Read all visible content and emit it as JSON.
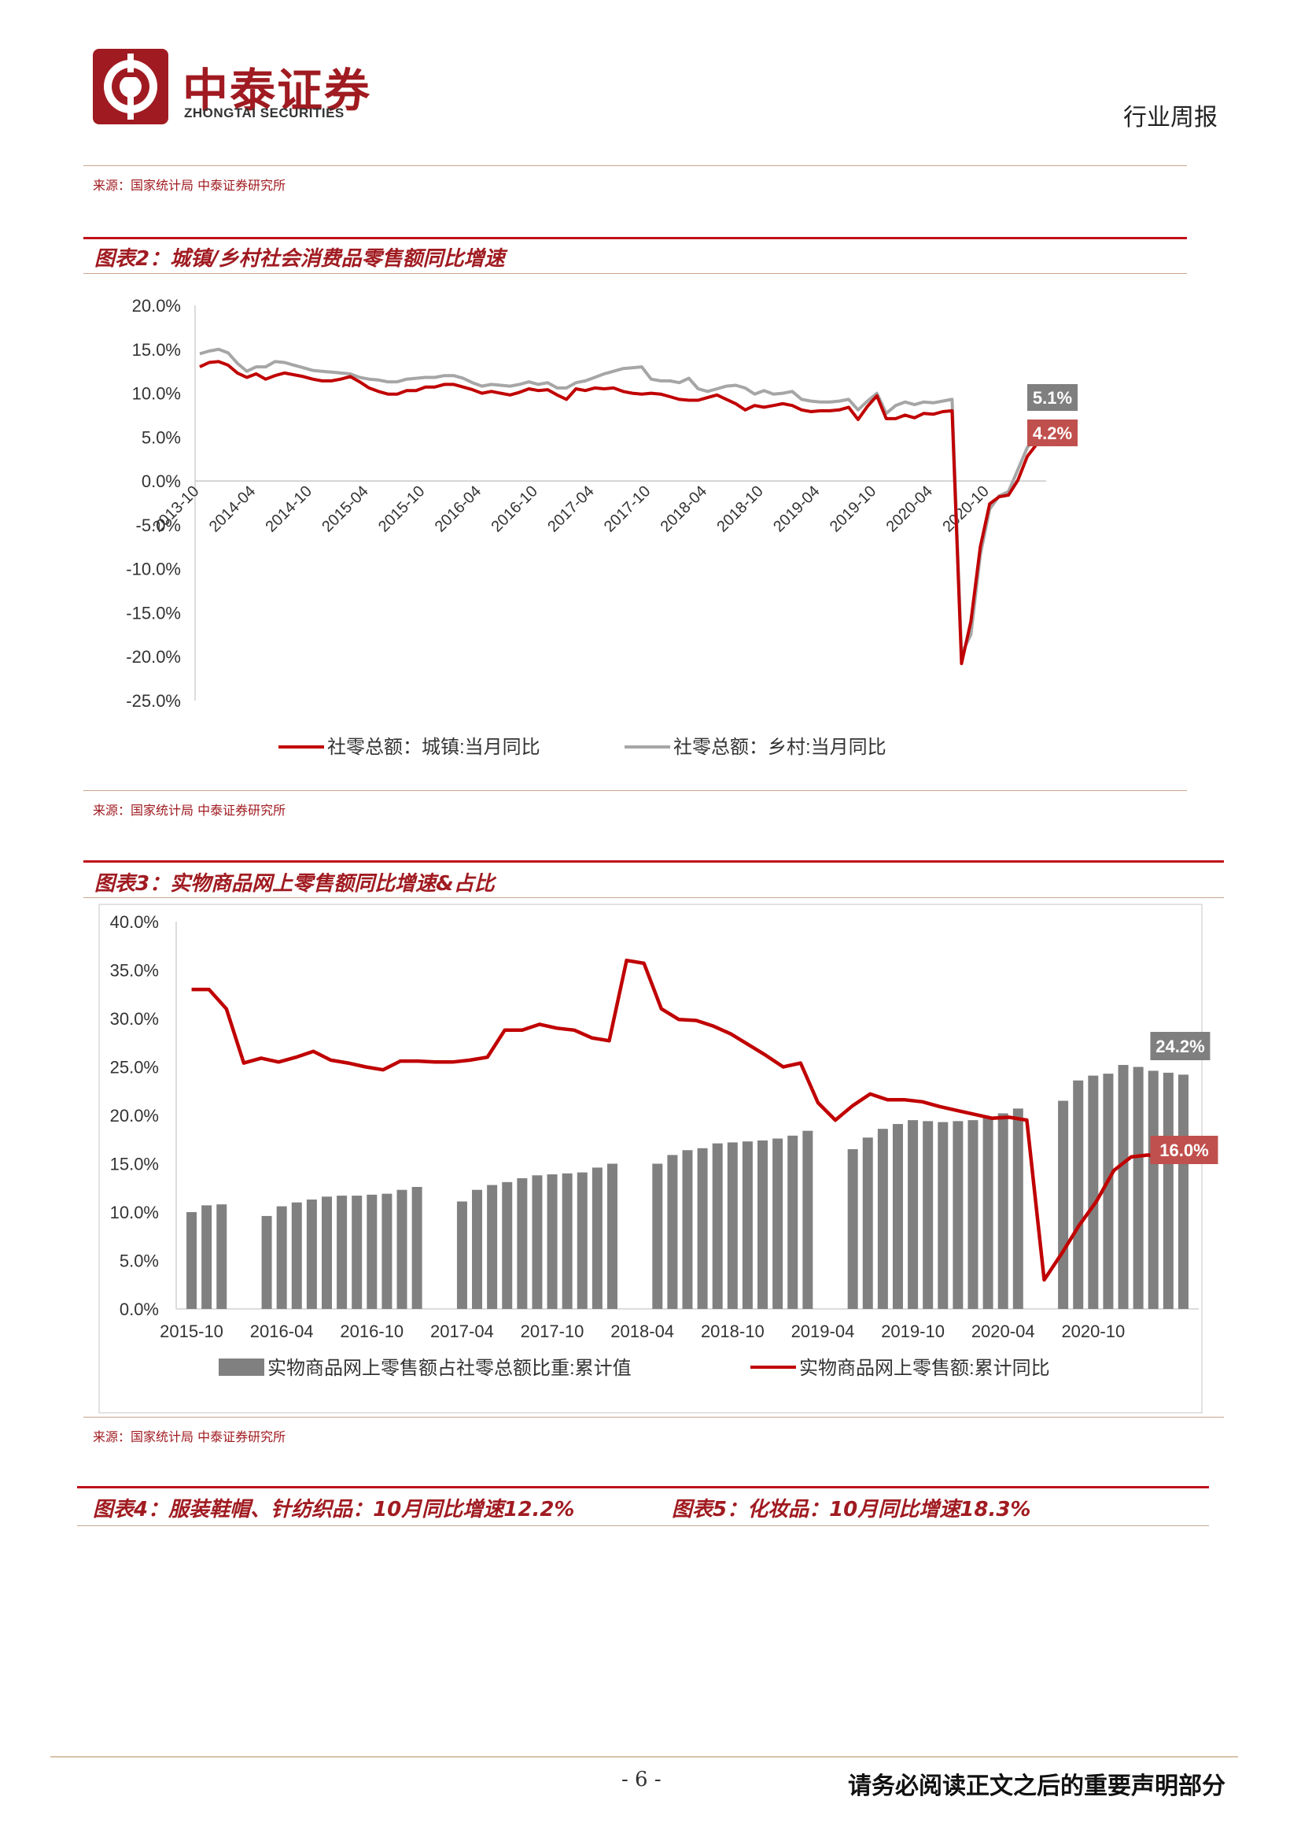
{
  "header": {
    "brand_cn": "中泰证券",
    "brand_en": "ZHONGTAI SECURITIES",
    "report_type": "行业周报"
  },
  "source_text": "来源：国家统计局 中泰证券研究所",
  "figures": {
    "fig2_title": "图表2：城镇/乡村社会消费品零售额同比增速",
    "fig3_title": "图表3：实物商品网上零售额同比增速&占比",
    "fig4_title": "图表4：服装鞋帽、针纺织品：10月同比增速12.2%",
    "fig5_title": "图表5：化妆品：10月同比增速18.3%"
  },
  "footer": {
    "page_no": "- 6 -",
    "disclaimer": "请务必阅读正文之后的重要声明部分"
  },
  "colors": {
    "accent": "#a01b21",
    "line_red": "#c00000",
    "line_gray": "#a6a6a6",
    "bar_gray": "#808080"
  },
  "chart_data": [
    {
      "type": "line",
      "ylim": [
        -25,
        20
      ],
      "yticks": [
        "20.0%",
        "15.0%",
        "10.0%",
        "5.0%",
        "0.0%",
        "-5.0%",
        "-10.0%",
        "-15.0%",
        "-20.0%",
        "-25.0%"
      ],
      "x_tick_labels": [
        "2013-10",
        "2014-04",
        "2014-10",
        "2015-04",
        "2015-10",
        "2016-04",
        "2016-10",
        "2017-04",
        "2017-10",
        "2018-04",
        "2018-10",
        "2019-04",
        "2019-10",
        "2020-04",
        "2020-10"
      ],
      "series": [
        {
          "name": "社零总额：城镇:当月同比",
          "color": "#c00000",
          "end_label": "4.2%",
          "values": [
            13.0,
            13.5,
            13.6,
            13.2,
            12.3,
            11.8,
            12.2,
            11.6,
            12.0,
            12.3,
            12.1,
            11.9,
            11.6,
            11.4,
            11.4,
            11.6,
            11.9,
            11.3,
            10.6,
            10.2,
            9.9,
            9.9,
            10.3,
            10.3,
            10.7,
            10.7,
            11.0,
            11.0,
            10.7,
            10.4,
            10.0,
            10.2,
            10.0,
            9.8,
            10.1,
            10.5,
            10.3,
            10.4,
            9.8,
            9.3,
            10.5,
            10.3,
            10.6,
            10.5,
            10.6,
            10.2,
            10.0,
            9.9,
            10.0,
            9.9,
            9.6,
            9.3,
            9.2,
            9.2,
            9.5,
            9.8,
            9.3,
            8.8,
            8.1,
            8.6,
            8.4,
            8.6,
            8.8,
            8.6,
            8.1,
            7.9,
            8.0,
            8.0,
            8.1,
            8.4,
            7.0,
            8.5,
            9.7,
            7.1,
            7.1,
            7.5,
            7.2,
            7.7,
            7.6,
            7.9,
            8.0,
            -20.8,
            -16.0,
            -7.5,
            -2.6,
            -1.8,
            -1.6,
            0.1,
            2.8,
            4.2
          ]
        },
        {
          "name": "社零总额：乡村:当月同比",
          "color": "#a6a6a6",
          "end_label": "5.1%",
          "values": [
            14.5,
            14.8,
            15.0,
            14.6,
            13.4,
            12.5,
            13.0,
            13.0,
            13.6,
            13.5,
            13.2,
            12.9,
            12.6,
            12.5,
            12.4,
            12.3,
            12.2,
            11.8,
            11.6,
            11.5,
            11.3,
            11.3,
            11.6,
            11.7,
            11.8,
            11.8,
            12.0,
            12.0,
            11.7,
            11.2,
            10.8,
            11.0,
            10.9,
            10.8,
            11.0,
            11.3,
            11.0,
            11.2,
            10.6,
            10.6,
            11.2,
            11.4,
            11.8,
            12.2,
            12.5,
            12.8,
            12.9,
            13.0,
            11.6,
            11.4,
            11.4,
            11.2,
            11.7,
            10.5,
            10.2,
            10.5,
            10.8,
            10.9,
            10.6,
            9.9,
            10.3,
            9.9,
            10.0,
            10.2,
            9.3,
            9.1,
            9.0,
            9.0,
            9.1,
            9.3,
            8.1,
            9.1,
            10.0,
            7.7,
            8.6,
            9.0,
            8.7,
            9.0,
            8.9,
            9.1,
            9.3,
            -19.7,
            -17.5,
            -8.4,
            -3.2,
            -1.7,
            -1.2,
            1.3,
            3.8,
            5.1
          ]
        }
      ]
    },
    {
      "type": "bar",
      "ylim": [
        0,
        40
      ],
      "yticks": [
        "40.0%",
        "35.0%",
        "30.0%",
        "25.0%",
        "20.0%",
        "15.0%",
        "10.0%",
        "5.0%",
        "0.0%"
      ],
      "x_tick_labels": [
        "2015-10",
        "2016-04",
        "2016-10",
        "2017-04",
        "2017-10",
        "2018-04",
        "2018-10",
        "2019-04",
        "2019-10",
        "2020-04",
        "2020-10"
      ],
      "bar_series": {
        "name": "实物商品网上零售额占社零总额比重:累计值",
        "color": "#808080",
        "end_label": "24.2%",
        "groups": [
          [
            10.0,
            10.7,
            10.8
          ],
          [
            9.6,
            10.6,
            11.0,
            11.3,
            11.6,
            11.7,
            11.7,
            11.8,
            11.9,
            12.3,
            12.6
          ],
          [
            11.1,
            12.3,
            12.8,
            13.1,
            13.5,
            13.8,
            13.9,
            14.0,
            14.1,
            14.6,
            15.0
          ],
          [
            15.0,
            15.9,
            16.4,
            16.6,
            17.1,
            17.2,
            17.3,
            17.4,
            17.6,
            17.9,
            18.4
          ],
          [
            16.5,
            17.7,
            18.6,
            19.1,
            19.5,
            19.4,
            19.3,
            19.4,
            19.5,
            19.8,
            20.2,
            20.7
          ],
          [
            21.5,
            23.6,
            24.1,
            24.3,
            25.2,
            25.0,
            24.6,
            24.4,
            24.2
          ]
        ]
      },
      "line_series": {
        "name": "实物商品网上零售额:累计同比",
        "color": "#c00000",
        "end_label": "16.0%",
        "values": [
          33.0,
          33.0,
          31.0,
          25.4,
          25.9,
          25.5,
          26.0,
          26.6,
          25.7,
          25.4,
          25.0,
          24.7,
          25.6,
          25.6,
          25.5,
          25.5,
          25.7,
          26.0,
          28.8,
          28.8,
          29.4,
          29.0,
          28.8,
          28.0,
          27.7,
          36.0,
          35.7,
          31.0,
          29.9,
          29.8,
          29.2,
          28.4,
          27.3,
          26.2,
          25.0,
          25.4,
          21.3,
          19.5,
          21.0,
          22.2,
          21.6,
          21.6,
          21.4,
          20.9,
          20.5,
          20.1,
          19.7,
          19.8,
          19.5,
          3.0,
          5.7,
          8.6,
          11.1,
          14.3,
          15.7,
          15.9,
          15.5,
          16.0
        ]
      }
    }
  ]
}
